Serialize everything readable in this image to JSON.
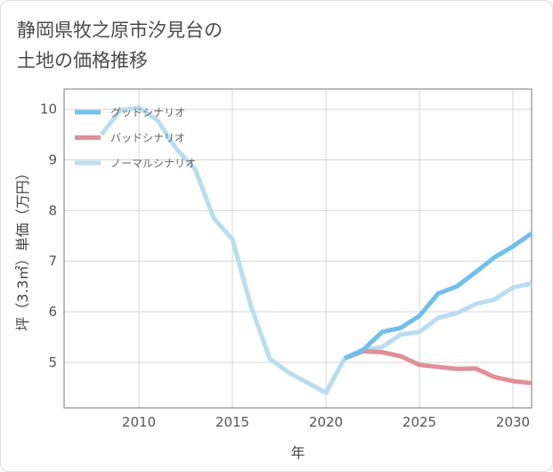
{
  "title_lines": [
    "静岡県牧之原市汐見台の",
    "土地の価格推移"
  ],
  "chart_data": {
    "type": "line",
    "xlabel": "年",
    "ylabel": "坪（3.3㎡）単価（万円）",
    "xlim": [
      2006,
      2031
    ],
    "ylim": [
      4.1,
      10.4
    ],
    "xticks": [
      2010,
      2015,
      2020,
      2025,
      2030
    ],
    "yticks": [
      5,
      6,
      7,
      8,
      9,
      10
    ],
    "grid": true,
    "legend_position": "top-left",
    "series": [
      {
        "name": "グッドシナリオ",
        "color": "#6fbfee",
        "x": [
          2021,
          2022,
          2023,
          2024,
          2025,
          2026,
          2027,
          2028,
          2029,
          2030,
          2031
        ],
        "y": [
          5.08,
          5.25,
          5.6,
          5.68,
          5.92,
          6.36,
          6.5,
          6.78,
          7.07,
          7.29,
          7.55
        ]
      },
      {
        "name": "バッドシナリオ",
        "color": "#e08e98",
        "x": [
          2021,
          2022,
          2023,
          2024,
          2025,
          2026,
          2027,
          2028,
          2029,
          2030,
          2031
        ],
        "y": [
          5.08,
          5.22,
          5.2,
          5.12,
          4.95,
          4.91,
          4.87,
          4.88,
          4.71,
          4.63,
          4.59
        ]
      },
      {
        "name": "ノーマルシナリオ",
        "color": "#b9ddef",
        "x": [
          2008,
          2009,
          2010,
          2011,
          2012,
          2013,
          2014,
          2015,
          2016,
          2017,
          2018,
          2019,
          2020,
          2021,
          2022,
          2023,
          2024,
          2025,
          2026,
          2027,
          2028,
          2029,
          2030,
          2031
        ],
        "y": [
          9.5,
          9.98,
          10.03,
          9.78,
          9.22,
          8.82,
          7.85,
          7.43,
          6.1,
          5.07,
          4.8,
          4.6,
          4.4,
          5.08,
          5.25,
          5.3,
          5.55,
          5.6,
          5.88,
          5.97,
          6.15,
          6.24,
          6.48,
          6.56
        ]
      }
    ]
  }
}
